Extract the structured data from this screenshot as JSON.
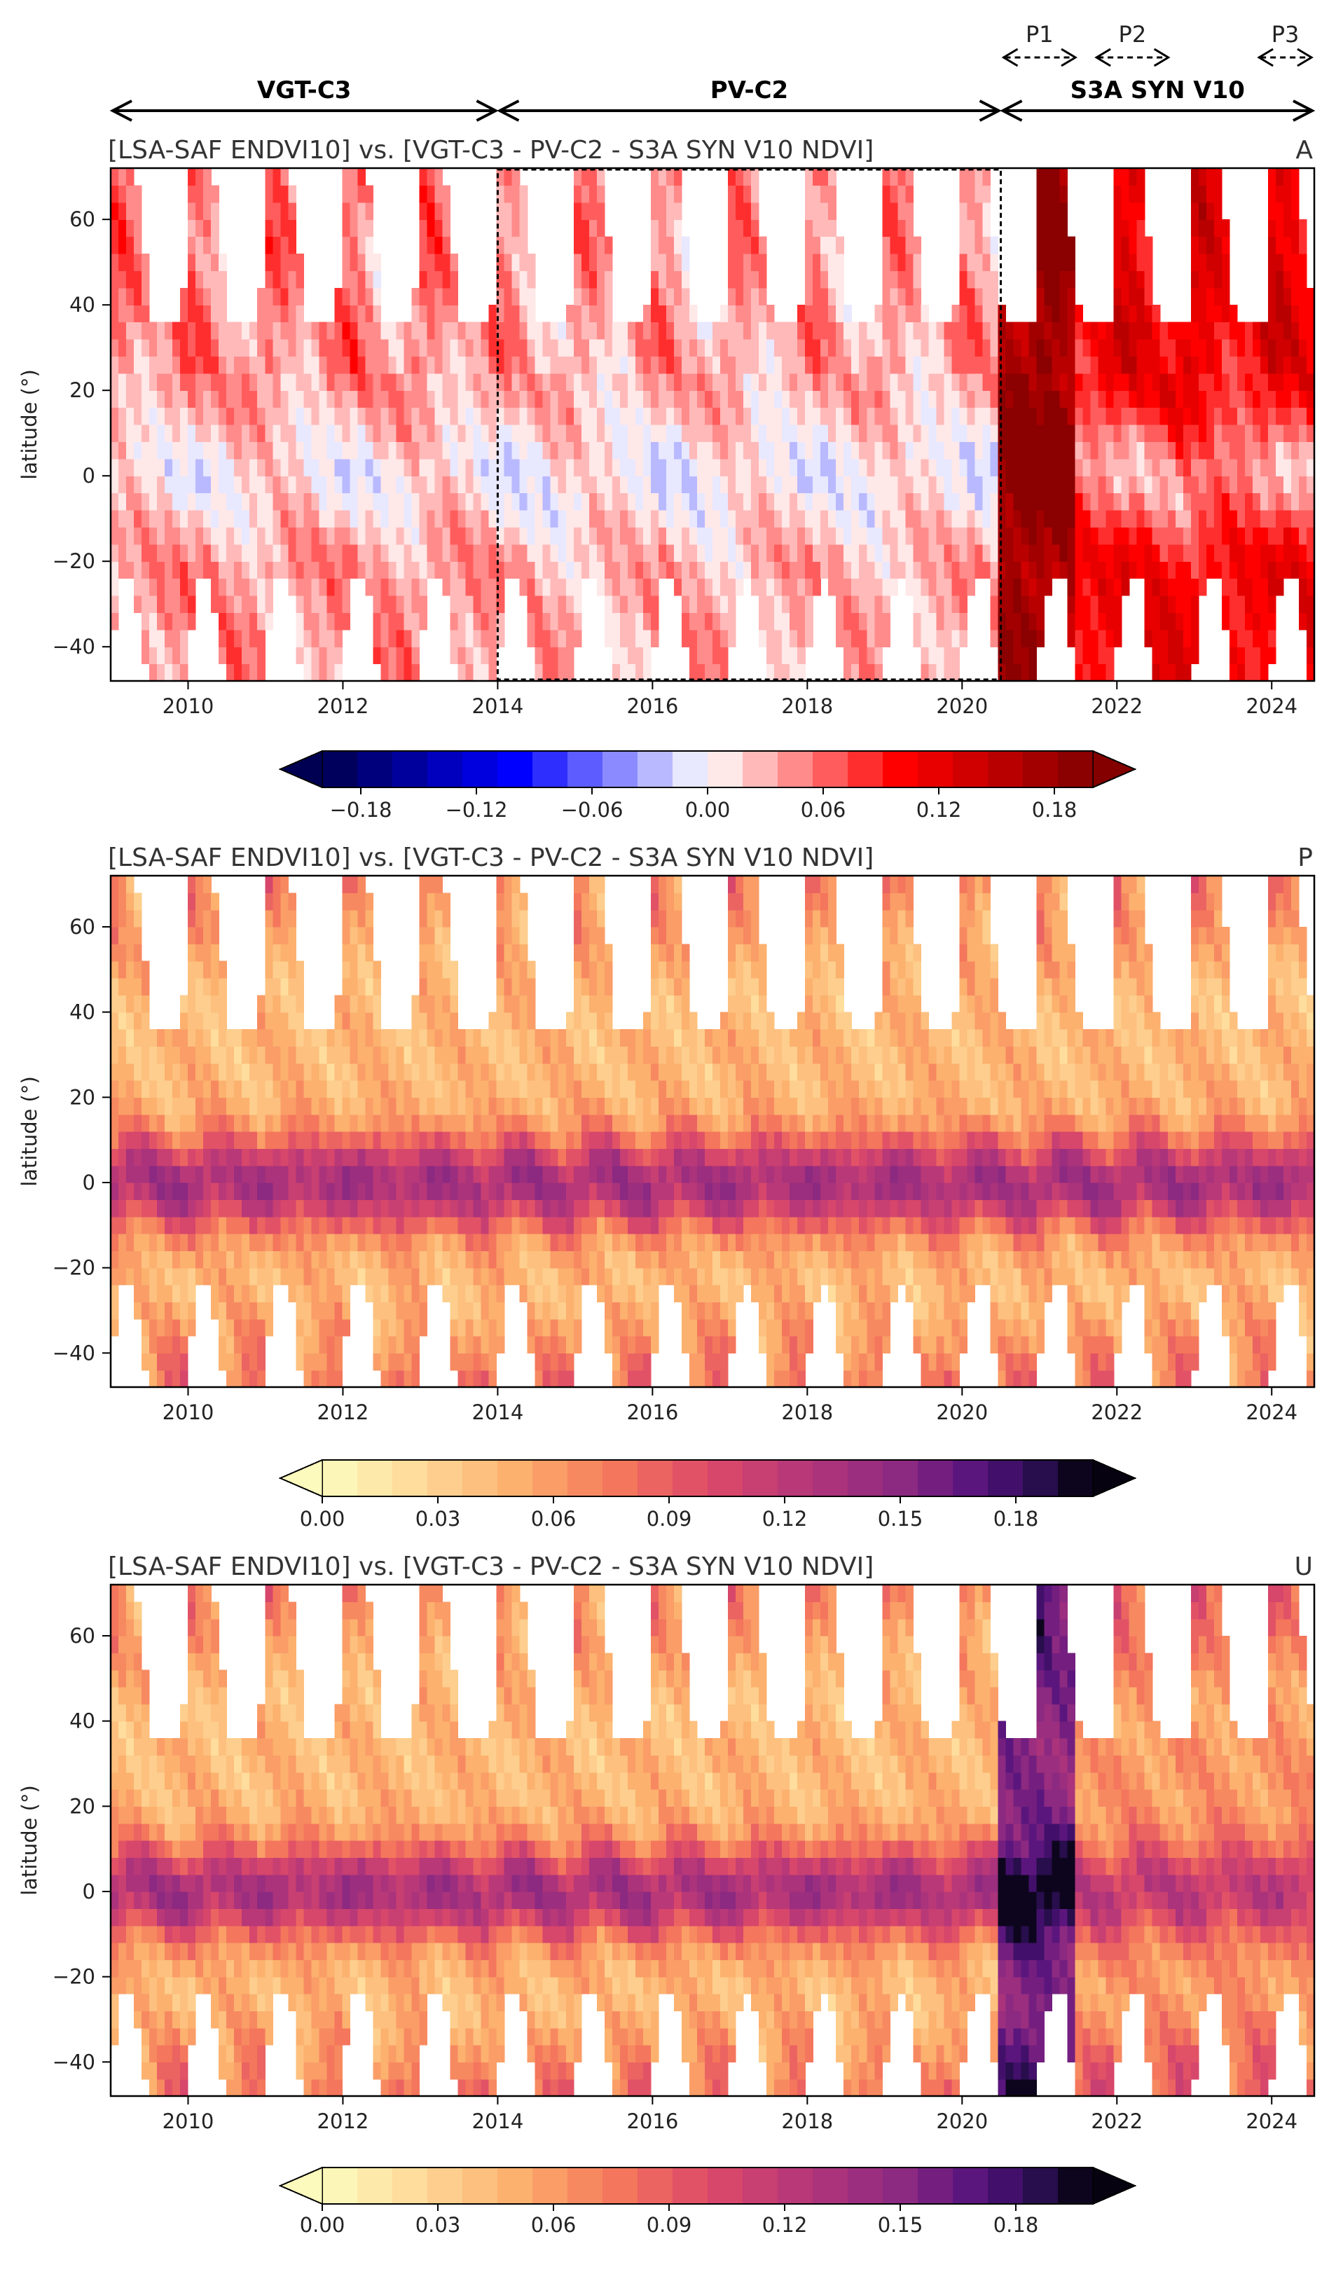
{
  "periods": {
    "sensors": [
      {
        "label": "VGT-C3",
        "start": 2009.0,
        "end": 2014.0
      },
      {
        "label": "PV-C2",
        "start": 2014.0,
        "end": 2020.5
      },
      {
        "label": "S3A SYN V10",
        "start": 2020.5,
        "end": 2024.55
      }
    ],
    "subperiods": [
      {
        "label": "P1",
        "start": 2020.5,
        "end": 2021.5
      },
      {
        "label": "P2",
        "start": 2021.7,
        "end": 2022.7
      },
      {
        "label": "P3",
        "start": 2023.8,
        "end": 2024.55
      }
    ]
  },
  "chart_data": [
    {
      "type": "heatmap",
      "panel": "A",
      "title": "[LSA-SAF ENDVI10] vs. [VGT-C3 - PV-C2 - S3A SYN V10 NDVI]",
      "metric_label": "A",
      "xlabel": "",
      "ylabel": "latitude (°)",
      "xlim": [
        2009.0,
        2024.55
      ],
      "ylim": [
        -48,
        72
      ],
      "xticks": [
        2010,
        2012,
        2014,
        2016,
        2018,
        2020,
        2022,
        2024
      ],
      "yticks": [
        -40,
        -20,
        0,
        20,
        40,
        60
      ],
      "colormap": "seismic",
      "highlight_box": {
        "start": 2014.0,
        "end": 2020.5
      },
      "colorbar": {
        "min": -0.2,
        "max": 0.2,
        "ticks": [
          "−0.18",
          "−0.12",
          "−0.06",
          "0.00",
          "0.06",
          "0.12",
          "0.18"
        ],
        "tick_values": [
          -0.18,
          -0.12,
          -0.06,
          0.0,
          0.06,
          0.12,
          0.18
        ],
        "levels": 22,
        "extend": "both"
      },
      "segments": [
        {
          "start": 2009.0,
          "end": 2014.0,
          "mean_value": 0.045,
          "equator_dip": 0.04
        },
        {
          "start": 2014.0,
          "end": 2020.5,
          "mean_value": 0.035,
          "equator_dip": 0.035
        },
        {
          "start": 2020.5,
          "end": 2021.5,
          "mean_value": 0.17,
          "equator_dip": -0.03
        },
        {
          "start": 2021.5,
          "end": 2024.55,
          "mean_value": 0.11,
          "equator_dip": 0.07
        }
      ]
    },
    {
      "type": "heatmap",
      "panel": "P",
      "title": "[LSA-SAF ENDVI10] vs. [VGT-C3 - PV-C2 - S3A SYN V10 NDVI]",
      "metric_label": "P",
      "xlabel": "",
      "ylabel": "latitude (°)",
      "xlim": [
        2009.0,
        2024.55
      ],
      "ylim": [
        -48,
        72
      ],
      "xticks": [
        2010,
        2012,
        2014,
        2016,
        2018,
        2020,
        2022,
        2024
      ],
      "yticks": [
        -40,
        -20,
        0,
        20,
        40,
        60
      ],
      "colormap": "magma_r",
      "colorbar": {
        "min": 0.0,
        "max": 0.2,
        "ticks": [
          "0.00",
          "0.03",
          "0.06",
          "0.09",
          "0.12",
          "0.15",
          "0.18"
        ],
        "tick_values": [
          0.0,
          0.03,
          0.06,
          0.09,
          0.12,
          0.15,
          0.18
        ],
        "levels": 22,
        "extend": "both"
      },
      "segments": [
        {
          "start": 2009.0,
          "end": 2024.55,
          "mid_value": 0.045,
          "equator_value": 0.135
        }
      ]
    },
    {
      "type": "heatmap",
      "panel": "U",
      "title": "[LSA-SAF ENDVI10] vs. [VGT-C3 - PV-C2 - S3A SYN V10 NDVI]",
      "metric_label": "U",
      "xlabel": "",
      "ylabel": "latitude (°)",
      "xlim": [
        2009.0,
        2024.55
      ],
      "ylim": [
        -48,
        72
      ],
      "xticks": [
        2010,
        2012,
        2014,
        2016,
        2018,
        2020,
        2022,
        2024
      ],
      "yticks": [
        -40,
        -20,
        0,
        20,
        40,
        60
      ],
      "colormap": "magma_r",
      "colorbar": {
        "min": 0.0,
        "max": 0.2,
        "ticks": [
          "0.00",
          "0.03",
          "0.06",
          "0.09",
          "0.12",
          "0.15",
          "0.18"
        ],
        "tick_values": [
          0.0,
          0.03,
          0.06,
          0.09,
          0.12,
          0.15,
          0.18
        ],
        "levels": 22,
        "extend": "both"
      },
      "segments": [
        {
          "start": 2009.0,
          "end": 2020.5,
          "mid_value": 0.045,
          "equator_value": 0.135
        },
        {
          "start": 2020.5,
          "end": 2021.5,
          "mid_value": 0.15,
          "equator_value": 0.205
        },
        {
          "start": 2021.5,
          "end": 2024.55,
          "mid_value": 0.06,
          "equator_value": 0.12
        }
      ]
    }
  ]
}
